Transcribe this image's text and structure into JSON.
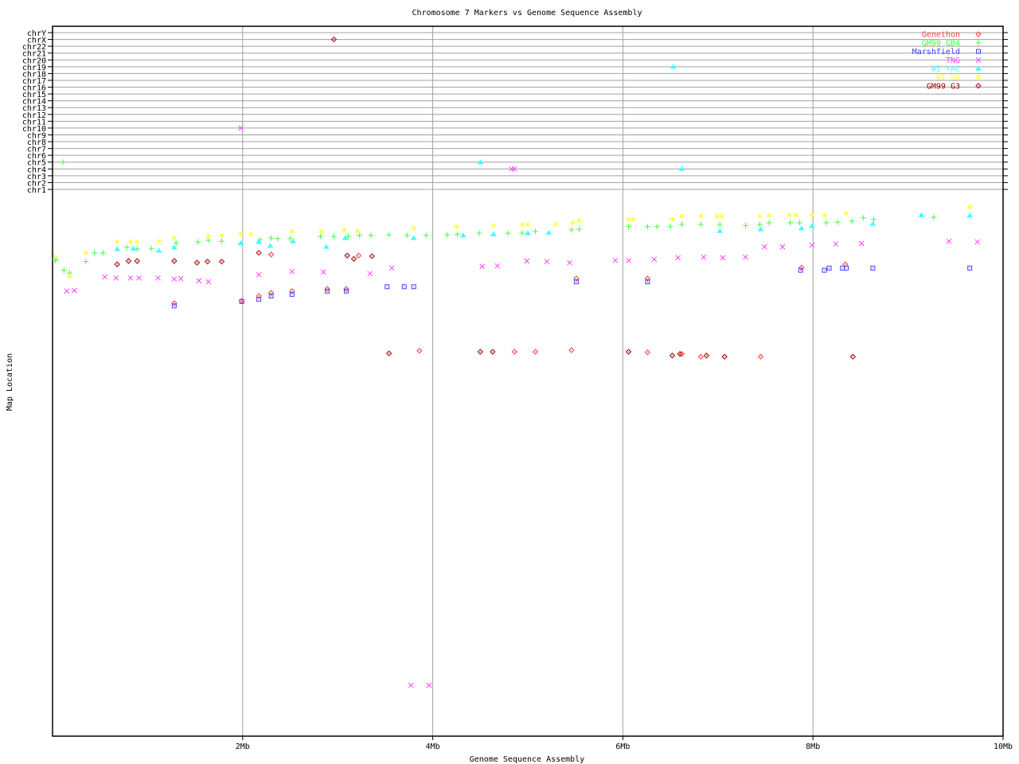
{
  "chart_data": {
    "type": "scatter",
    "title": "Chromosome 7 Markers vs Genome Sequence Assembly",
    "xlabel": "Genome Sequence Assembly",
    "ylabel": "Map Location",
    "xlim": [
      0,
      10
    ],
    "x_ticks": [
      {
        "value": 2,
        "label": "2Mb"
      },
      {
        "value": 4,
        "label": "4Mb"
      },
      {
        "value": 6,
        "label": "6Mb"
      },
      {
        "value": 8,
        "label": "8Mb"
      },
      {
        "value": 10,
        "label": "10Mb"
      }
    ],
    "y_categories": [
      "chrY",
      "chrX",
      "chr22",
      "chr21",
      "chr20",
      "chr19",
      "chr18",
      "chr17",
      "chr16",
      "chr15",
      "chr14",
      "chr13",
      "chr12",
      "chr11",
      "chr10",
      "chr9",
      "chr8",
      "chr7",
      "chr6",
      "chr5",
      "chr4",
      "chr3",
      "chr2",
      "chr1"
    ],
    "chr7_map_range": [
      0,
      100
    ],
    "grid": true,
    "legend_position": "top-right",
    "series": [
      {
        "name": "Genethon",
        "color": "#ff4040",
        "marker": "diamond",
        "points": [
          [
            1.28,
            20.8
          ],
          [
            1.99,
            20.4
          ],
          [
            2.17,
            19.5
          ],
          [
            2.3,
            18.9
          ],
          [
            2.52,
            18.6
          ],
          [
            2.89,
            18.2
          ],
          [
            3.09,
            18.2
          ],
          [
            2.3,
            11.9
          ],
          [
            3.22,
            12.1
          ],
          [
            5.51,
            16.3
          ],
          [
            6.26,
            16.3
          ],
          [
            7.88,
            14.3
          ],
          [
            8.34,
            13.7
          ],
          [
            3.86,
            29.5
          ],
          [
            4.86,
            29.7
          ],
          [
            5.08,
            29.7
          ],
          [
            5.46,
            29.4
          ],
          [
            6.26,
            29.8
          ],
          [
            6.62,
            30.1
          ],
          [
            6.82,
            30.6
          ],
          [
            7.45,
            30.6
          ]
        ]
      },
      {
        "name": "GM99 GB4",
        "color": "#40ff40",
        "marker": "plus",
        "points": [
          [
            0.03,
            13.0
          ],
          [
            0.12,
            14.8
          ],
          [
            0.18,
            15.3
          ],
          [
            0.35,
            13.2
          ],
          [
            0.44,
            11.6
          ],
          [
            0.53,
            11.6
          ],
          [
            0.78,
            10.6
          ],
          [
            0.89,
            10.9
          ],
          [
            1.04,
            10.8
          ],
          [
            1.3,
            9.8
          ],
          [
            1.53,
            9.6
          ],
          [
            1.64,
            9.3
          ],
          [
            1.78,
            9.5
          ],
          [
            2.18,
            9.2
          ],
          [
            2.3,
            8.9
          ],
          [
            2.37,
            9.0
          ],
          [
            2.5,
            9.0
          ],
          [
            2.82,
            8.6
          ],
          [
            2.96,
            8.6
          ],
          [
            3.11,
            8.6
          ],
          [
            3.23,
            8.4
          ],
          [
            3.35,
            8.4
          ],
          [
            3.54,
            8.3
          ],
          [
            3.73,
            8.4
          ],
          [
            3.93,
            8.4
          ],
          [
            4.15,
            8.3
          ],
          [
            4.26,
            8.2
          ],
          [
            4.49,
            8.0
          ],
          [
            4.79,
            8.0
          ],
          [
            4.94,
            8.0
          ],
          [
            5.08,
            7.7
          ],
          [
            5.46,
            7.4
          ],
          [
            5.54,
            7.3
          ],
          [
            6.06,
            6.8
          ],
          [
            6.26,
            6.8
          ],
          [
            6.36,
            6.8
          ],
          [
            6.5,
            6.8
          ],
          [
            6.62,
            6.4
          ],
          [
            6.82,
            6.4
          ],
          [
            7.02,
            6.4
          ],
          [
            7.29,
            6.6
          ],
          [
            7.44,
            6.4
          ],
          [
            7.54,
            6.1
          ],
          [
            7.76,
            6.1
          ],
          [
            7.86,
            6.1
          ],
          [
            8.14,
            6.1
          ],
          [
            8.26,
            6.0
          ],
          [
            8.41,
            5.8
          ],
          [
            8.53,
            5.2
          ],
          [
            8.64,
            5.5
          ],
          [
            9.27,
            5.1
          ],
          [
            0.11,
            "chr5"
          ]
        ]
      },
      {
        "name": "Marshfield",
        "color": "#4040ff",
        "marker": "square",
        "points": [
          [
            1.28,
            21.3
          ],
          [
            1.99,
            20.5
          ],
          [
            2.17,
            20.1
          ],
          [
            2.3,
            19.5
          ],
          [
            2.52,
            19.2
          ],
          [
            2.89,
            18.6
          ],
          [
            3.09,
            18.6
          ],
          [
            3.52,
            17.8
          ],
          [
            3.7,
            17.8
          ],
          [
            3.8,
            17.8
          ],
          [
            5.51,
            16.9
          ],
          [
            6.26,
            16.9
          ],
          [
            7.87,
            14.8
          ],
          [
            8.12,
            14.8
          ],
          [
            8.17,
            14.4
          ],
          [
            8.31,
            14.4
          ],
          [
            8.35,
            14.4
          ],
          [
            8.63,
            14.4
          ],
          [
            9.65,
            14.4
          ]
        ]
      },
      {
        "name": "TNG",
        "color": "#ff40ff",
        "marker": "cross",
        "points": [
          [
            0.15,
            18.6
          ],
          [
            0.23,
            18.5
          ],
          [
            0.55,
            16.0
          ],
          [
            0.67,
            16.2
          ],
          [
            0.82,
            16.2
          ],
          [
            0.91,
            16.2
          ],
          [
            1.11,
            16.2
          ],
          [
            1.28,
            16.4
          ],
          [
            1.35,
            16.3
          ],
          [
            1.54,
            16.7
          ],
          [
            1.64,
            16.9
          ],
          [
            2.17,
            15.6
          ],
          [
            2.52,
            15.0
          ],
          [
            2.85,
            15.1
          ],
          [
            3.34,
            15.4
          ],
          [
            3.57,
            14.4
          ],
          [
            4.52,
            14.1
          ],
          [
            4.68,
            14.0
          ],
          [
            4.99,
            13.1
          ],
          [
            5.2,
            13.2
          ],
          [
            5.44,
            13.4
          ],
          [
            5.92,
            13.0
          ],
          [
            6.06,
            13.0
          ],
          [
            6.33,
            12.8
          ],
          [
            6.58,
            12.5
          ],
          [
            6.85,
            12.4
          ],
          [
            7.05,
            12.5
          ],
          [
            7.29,
            12.4
          ],
          [
            7.49,
            10.5
          ],
          [
            7.68,
            10.5
          ],
          [
            7.99,
            10.2
          ],
          [
            8.24,
            10.0
          ],
          [
            8.51,
            9.9
          ],
          [
            9.43,
            9.5
          ],
          [
            9.73,
            9.6
          ],
          [
            3.77,
            90.7
          ],
          [
            3.96,
            90.7
          ],
          [
            1.98,
            "chr10"
          ],
          [
            4.83,
            "chr4"
          ],
          [
            4.86,
            "chr4"
          ]
        ]
      },
      {
        "name": "WI YAC",
        "color": "#40ffff",
        "marker": "triangle",
        "points": [
          [
            0.03,
            12.5
          ],
          [
            0.68,
            10.9
          ],
          [
            0.85,
            10.8
          ],
          [
            1.12,
            11.2
          ],
          [
            1.28,
            10.6
          ],
          [
            1.98,
            9.8
          ],
          [
            2.17,
            9.6
          ],
          [
            2.29,
            10.3
          ],
          [
            2.53,
            9.5
          ],
          [
            2.88,
            10.5
          ],
          [
            3.08,
            8.9
          ],
          [
            3.8,
            8.9
          ],
          [
            4.32,
            8.4
          ],
          [
            4.64,
            8.2
          ],
          [
            5.0,
            8.0
          ],
          [
            5.22,
            7.9
          ],
          [
            7.02,
            7.6
          ],
          [
            7.45,
            7.3
          ],
          [
            7.88,
            7.1
          ],
          [
            7.99,
            6.7
          ],
          [
            8.63,
            6.3
          ],
          [
            9.14,
            4.7
          ],
          [
            9.65,
            4.8
          ],
          [
            6.53,
            "chr19"
          ],
          [
            4.5,
            "chr5"
          ],
          [
            6.62,
            "chr4"
          ]
        ]
      },
      {
        "name": "WI RH",
        "color": "#ffff40",
        "marker": "asterisk",
        "points": [
          [
            0.03,
            12.4
          ],
          [
            0.18,
            15.9
          ],
          [
            0.35,
            11.6
          ],
          [
            0.68,
            9.6
          ],
          [
            0.82,
            9.6
          ],
          [
            0.89,
            9.6
          ],
          [
            1.12,
            9.5
          ],
          [
            1.28,
            8.9
          ],
          [
            1.64,
            8.6
          ],
          [
            1.78,
            8.4
          ],
          [
            1.98,
            8.2
          ],
          [
            2.09,
            8.2
          ],
          [
            2.52,
            7.7
          ],
          [
            2.83,
            7.6
          ],
          [
            3.07,
            7.4
          ],
          [
            3.21,
            7.6
          ],
          [
            3.8,
            7.1
          ],
          [
            4.25,
            6.8
          ],
          [
            4.64,
            6.6
          ],
          [
            4.94,
            6.4
          ],
          [
            5.0,
            6.4
          ],
          [
            5.29,
            6.4
          ],
          [
            5.47,
            6.1
          ],
          [
            5.54,
            5.7
          ],
          [
            6.06,
            5.5
          ],
          [
            6.11,
            5.5
          ],
          [
            6.52,
            5.4
          ],
          [
            6.62,
            4.9
          ],
          [
            6.82,
            4.9
          ],
          [
            6.99,
            4.9
          ],
          [
            7.04,
            4.9
          ],
          [
            7.44,
            4.9
          ],
          [
            7.54,
            4.7
          ],
          [
            7.75,
            4.7
          ],
          [
            7.82,
            4.7
          ],
          [
            7.99,
            4.7
          ],
          [
            8.12,
            4.7
          ],
          [
            8.35,
            4.4
          ],
          [
            9.65,
            3.2
          ]
        ]
      },
      {
        "name": "GM99 G3",
        "color": "#a00000",
        "marker": "diamond",
        "points": [
          [
            0.68,
            13.7
          ],
          [
            0.8,
            13.1
          ],
          [
            0.89,
            13.1
          ],
          [
            1.28,
            13.1
          ],
          [
            1.52,
            13.4
          ],
          [
            1.63,
            13.2
          ],
          [
            1.78,
            13.2
          ],
          [
            2.17,
            11.6
          ],
          [
            3.1,
            12.1
          ],
          [
            3.17,
            12.7
          ],
          [
            3.36,
            12.2
          ],
          [
            3.54,
            30.0
          ],
          [
            4.5,
            29.7
          ],
          [
            4.63,
            29.7
          ],
          [
            6.06,
            29.7
          ],
          [
            6.52,
            30.4
          ],
          [
            6.6,
            30.1
          ],
          [
            6.88,
            30.4
          ],
          [
            7.07,
            30.6
          ],
          [
            8.42,
            30.6
          ],
          [
            2.96,
            "chrX"
          ]
        ]
      }
    ]
  }
}
